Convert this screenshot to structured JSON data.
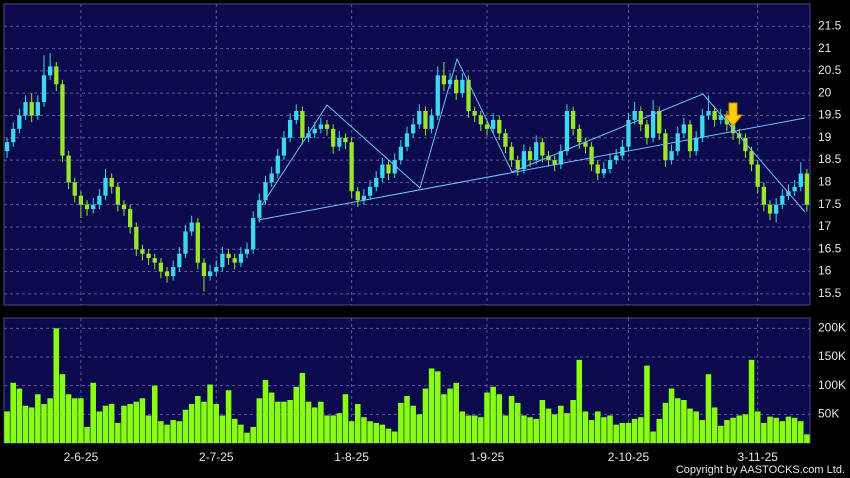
{
  "chart_data": [
    {
      "type": "candlestick",
      "up_color": "#3cd8f0",
      "down_color": "#99e62a",
      "ylim": [
        15.25,
        22
      ],
      "yticks": [
        15.5,
        16,
        16.5,
        17,
        17.5,
        18,
        18.5,
        19,
        19.5,
        20,
        20.5,
        21,
        21.5
      ],
      "grid": true,
      "open": [
        18.7,
        18.9,
        19.2,
        19.5,
        19.8,
        19.5,
        19.8,
        20.4,
        20.6,
        20.2,
        18.6,
        18.0,
        17.7,
        17.5,
        17.4,
        17.5,
        17.7,
        18.1,
        17.9,
        17.5,
        17.4,
        17.0,
        16.5,
        16.4,
        16.3,
        16.2,
        16.0,
        15.9,
        16.1,
        16.4,
        16.9,
        17.1,
        16.2,
        15.9,
        16.0,
        16.1,
        16.4,
        16.3,
        16.2,
        16.4,
        16.5,
        17.2,
        17.6,
        18.0,
        18.2,
        18.6,
        19.0,
        19.4,
        19.6,
        19.0,
        19.1,
        19.2,
        19.3,
        19.2,
        18.8,
        19.0,
        18.9,
        17.8,
        17.6,
        17.7,
        17.9,
        18.1,
        18.4,
        18.2,
        18.5,
        18.8,
        19.1,
        19.3,
        19.6,
        19.2,
        19.5,
        20.4,
        20.2,
        20.3,
        20.0,
        20.3,
        19.6,
        19.5,
        19.3,
        19.2,
        19.4,
        19.1,
        18.8,
        18.5,
        18.3,
        18.7,
        18.5,
        18.9,
        18.6,
        18.5,
        18.4,
        18.7,
        19.6,
        19.2,
        18.9,
        18.8,
        18.4,
        18.2,
        18.3,
        18.5,
        18.6,
        18.8,
        19.4,
        19.6,
        19.3,
        19.0,
        19.6,
        19.1,
        18.5,
        18.7,
        19.1,
        19.3,
        18.7,
        19.0,
        19.5,
        19.6,
        19.4,
        19.5,
        19.3,
        19.1,
        19.0,
        18.7,
        18.4,
        17.9,
        17.5,
        17.3,
        17.5,
        17.7,
        17.8,
        17.9,
        18.2
      ],
      "high": [
        19.0,
        19.35,
        19.65,
        19.95,
        20.0,
        19.95,
        20.85,
        20.9,
        20.7,
        20.3,
        18.7,
        18.1,
        17.8,
        17.6,
        17.65,
        17.85,
        18.3,
        18.2,
        18.0,
        17.6,
        17.5,
        17.1,
        16.6,
        16.5,
        16.4,
        16.3,
        16.1,
        16.25,
        16.55,
        17.05,
        17.25,
        17.2,
        16.3,
        16.15,
        16.25,
        16.55,
        16.5,
        16.4,
        16.55,
        16.65,
        17.35,
        17.75,
        18.15,
        18.35,
        18.75,
        19.15,
        19.55,
        19.75,
        19.7,
        19.25,
        19.35,
        19.45,
        19.4,
        19.3,
        19.15,
        19.1,
        19.0,
        17.9,
        17.85,
        18.05,
        18.25,
        18.55,
        18.5,
        18.65,
        18.95,
        19.25,
        19.45,
        19.75,
        19.7,
        19.65,
        20.6,
        20.7,
        20.45,
        20.4,
        20.45,
        20.4,
        19.7,
        19.6,
        19.4,
        19.55,
        19.5,
        19.2,
        18.9,
        18.6,
        18.85,
        18.8,
        19.05,
        19.0,
        18.7,
        18.6,
        18.85,
        19.75,
        19.7,
        19.3,
        19.0,
        18.9,
        18.5,
        18.45,
        18.65,
        18.75,
        18.95,
        19.55,
        19.8,
        19.7,
        19.4,
        19.85,
        19.7,
        19.2,
        18.85,
        19.25,
        19.45,
        19.4,
        19.15,
        19.65,
        19.95,
        19.7,
        19.65,
        19.6,
        19.4,
        19.2,
        19.1,
        18.8,
        18.5,
        18.0,
        17.6,
        17.65,
        17.85,
        17.95,
        18.05,
        18.45,
        18.3
      ],
      "low": [
        18.55,
        18.8,
        19.1,
        19.4,
        19.35,
        19.4,
        19.7,
        20.3,
        20.05,
        18.45,
        17.85,
        17.55,
        17.2,
        17.25,
        17.3,
        17.4,
        17.6,
        17.75,
        17.35,
        17.25,
        16.85,
        16.35,
        16.25,
        16.15,
        16.05,
        15.85,
        15.75,
        15.8,
        16.0,
        16.3,
        16.8,
        16.05,
        15.55,
        15.8,
        15.9,
        16.0,
        16.15,
        16.05,
        16.1,
        16.3,
        16.4,
        17.1,
        17.5,
        17.9,
        18.1,
        18.5,
        18.9,
        19.3,
        18.85,
        18.9,
        19.0,
        19.1,
        19.05,
        18.65,
        18.7,
        18.75,
        17.65,
        17.45,
        17.5,
        17.6,
        17.8,
        18.0,
        18.05,
        18.1,
        18.4,
        18.7,
        19.0,
        19.2,
        19.05,
        19.1,
        19.4,
        20.05,
        20.1,
        19.85,
        19.9,
        19.45,
        19.35,
        19.15,
        19.05,
        19.1,
        18.95,
        18.65,
        18.35,
        18.15,
        18.2,
        18.35,
        18.4,
        18.45,
        18.35,
        18.25,
        18.3,
        18.6,
        19.05,
        18.75,
        18.65,
        18.25,
        18.05,
        18.1,
        18.2,
        18.4,
        18.5,
        18.7,
        19.3,
        19.15,
        18.85,
        18.9,
        18.95,
        18.35,
        18.4,
        18.6,
        19.0,
        18.55,
        18.6,
        18.9,
        19.4,
        19.25,
        19.3,
        19.15,
        18.95,
        18.85,
        18.55,
        18.25,
        17.75,
        17.35,
        17.15,
        17.1,
        17.4,
        17.6,
        17.7,
        17.8,
        17.35
      ],
      "close": [
        18.9,
        19.2,
        19.5,
        19.8,
        19.5,
        19.8,
        20.4,
        20.6,
        20.2,
        18.6,
        18.0,
        17.7,
        17.5,
        17.4,
        17.5,
        17.7,
        18.1,
        17.9,
        17.5,
        17.4,
        17.0,
        16.5,
        16.4,
        16.3,
        16.2,
        16.0,
        15.9,
        16.1,
        16.4,
        16.9,
        17.1,
        16.2,
        15.9,
        16.0,
        16.1,
        16.4,
        16.3,
        16.2,
        16.4,
        16.5,
        17.2,
        17.6,
        18.0,
        18.2,
        18.6,
        19.0,
        19.4,
        19.6,
        19.0,
        19.1,
        19.2,
        19.3,
        19.2,
        18.8,
        19.0,
        18.9,
        17.8,
        17.6,
        17.7,
        17.9,
        18.1,
        18.4,
        18.2,
        18.5,
        18.8,
        19.1,
        19.3,
        19.6,
        19.2,
        19.5,
        20.4,
        20.2,
        20.3,
        20.0,
        20.3,
        19.6,
        19.5,
        19.3,
        19.2,
        19.4,
        19.1,
        18.8,
        18.5,
        18.3,
        18.7,
        18.5,
        18.9,
        18.6,
        18.5,
        18.4,
        18.7,
        19.6,
        19.2,
        18.9,
        18.8,
        18.4,
        18.2,
        18.3,
        18.5,
        18.6,
        18.8,
        19.4,
        19.6,
        19.3,
        19.0,
        19.6,
        19.1,
        18.5,
        18.7,
        19.1,
        19.3,
        18.7,
        19.0,
        19.5,
        19.6,
        19.4,
        19.5,
        19.3,
        19.1,
        19.0,
        18.7,
        18.4,
        17.9,
        17.5,
        17.3,
        17.5,
        17.7,
        17.8,
        17.9,
        18.2,
        17.5
      ]
    },
    {
      "type": "bar",
      "color": "#88ff11",
      "ylim": [
        0,
        218000
      ],
      "yticks": [
        {
          "value": 50000,
          "label": "50K"
        },
        {
          "value": 100000,
          "label": "100K"
        },
        {
          "value": 150000,
          "label": "150K"
        },
        {
          "value": 200000,
          "label": "200K"
        }
      ],
      "grid": true,
      "categories": [
        null,
        null,
        null,
        null,
        null,
        null,
        null,
        null,
        null,
        null,
        null,
        null,
        "2-6-25",
        null,
        null,
        null,
        null,
        null,
        null,
        null,
        null,
        null,
        null,
        null,
        null,
        null,
        null,
        null,
        null,
        null,
        null,
        null,
        null,
        null,
        "2-7-25",
        null,
        null,
        null,
        null,
        null,
        null,
        null,
        null,
        null,
        null,
        null,
        null,
        null,
        null,
        null,
        null,
        null,
        null,
        null,
        null,
        null,
        "1-8-25",
        null,
        null,
        null,
        null,
        null,
        null,
        null,
        null,
        null,
        null,
        null,
        null,
        null,
        null,
        null,
        null,
        null,
        null,
        null,
        null,
        null,
        "1-9-25",
        null,
        null,
        null,
        null,
        null,
        null,
        null,
        null,
        null,
        null,
        null,
        null,
        null,
        null,
        null,
        null,
        null,
        null,
        null,
        null,
        null,
        null,
        "2-10-25",
        null,
        null,
        null,
        null,
        null,
        null,
        null,
        null,
        null,
        null,
        null,
        null,
        null,
        null,
        null,
        null,
        null,
        null,
        null,
        null,
        "3-11-25",
        null,
        null,
        null,
        null,
        null,
        null,
        null,
        null
      ],
      "values": [
        55000,
        105000,
        95000,
        65000,
        62000,
        85000,
        68000,
        78000,
        200000,
        120000,
        85000,
        78000,
        78000,
        28000,
        105000,
        55000,
        65000,
        68000,
        35000,
        65000,
        68000,
        72000,
        78000,
        48000,
        100000,
        38000,
        32000,
        40000,
        38000,
        58000,
        68000,
        82000,
        72000,
        102000,
        68000,
        48000,
        92000,
        42000,
        32000,
        18000,
        28000,
        78000,
        110000,
        88000,
        72000,
        72000,
        75000,
        98000,
        122000,
        72000,
        62000,
        72000,
        48000,
        48000,
        52000,
        85000,
        38000,
        68000,
        45000,
        38000,
        35000,
        32000,
        25000,
        20000,
        70000,
        82000,
        65000,
        50000,
        95000,
        130000,
        125000,
        85000,
        95000,
        105000,
        55000,
        48000,
        48000,
        45000,
        88000,
        98000,
        85000,
        48000,
        82000,
        70000,
        48000,
        45000,
        42000,
        75000,
        60000,
        50000,
        65000,
        52000,
        75000,
        145000,
        55000,
        40000,
        55000,
        45000,
        48000,
        32000,
        35000,
        35000,
        42000,
        45000,
        135000,
        20000,
        42000,
        70000,
        95000,
        78000,
        75000,
        60000,
        55000,
        40000,
        120000,
        62000,
        30000,
        40000,
        44000,
        48000,
        50000,
        145000,
        55000,
        35000,
        46000,
        44000,
        38000,
        46000,
        44000,
        38000,
        15000
      ]
    }
  ],
  "footer": "Copyright by AASTOCKS.com Ltd."
}
